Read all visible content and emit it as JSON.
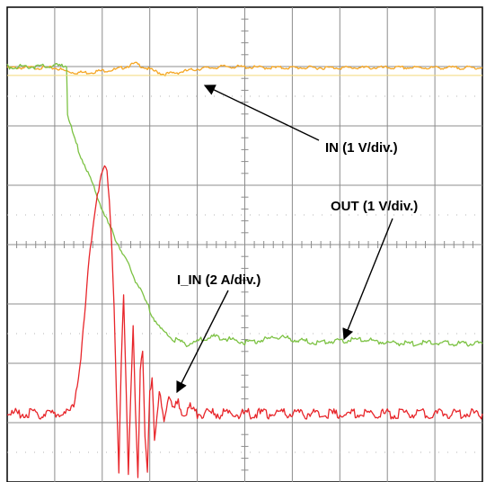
{
  "chart_data": {
    "type": "line",
    "title": "",
    "xlabel": "",
    "ylabel": "",
    "grid": true,
    "grid_divisions": {
      "x": 10,
      "y": 8
    },
    "xlim": [
      0,
      10
    ],
    "ylim": [
      -4,
      4
    ],
    "colors": {
      "in": "#f5a623",
      "out": "#7cc243",
      "iin": "#e8262b",
      "grid": "#8c8c8c",
      "arrow": "#000000"
    },
    "series": [
      {
        "key": "in",
        "points": [
          [
            0,
            2.98
          ],
          [
            0.8,
            2.98
          ],
          [
            1.05,
            2.97
          ],
          [
            1.2,
            2.93
          ],
          [
            1.4,
            2.9
          ],
          [
            1.7,
            2.9
          ],
          [
            2.0,
            2.93
          ],
          [
            2.3,
            2.95
          ],
          [
            2.7,
            3.05
          ],
          [
            3.0,
            2.95
          ],
          [
            3.3,
            2.87
          ],
          [
            3.6,
            2.9
          ],
          [
            4.0,
            2.96
          ],
          [
            4.6,
            3.0
          ],
          [
            5.5,
            2.98
          ],
          [
            6.5,
            2.98
          ],
          [
            7.5,
            2.98
          ],
          [
            8.5,
            2.98
          ],
          [
            9.5,
            2.98
          ],
          [
            10,
            2.98
          ]
        ]
      },
      {
        "key": "out",
        "points": [
          [
            0,
            3.0
          ],
          [
            0.8,
            3.0
          ],
          [
            1.25,
            3.02
          ],
          [
            1.27,
            2.2
          ],
          [
            1.4,
            1.8
          ],
          [
            1.6,
            1.4
          ],
          [
            1.8,
            1.0
          ],
          [
            1.95,
            0.7
          ],
          [
            2.1,
            0.4
          ],
          [
            2.25,
            0.15
          ],
          [
            2.4,
            -0.1
          ],
          [
            2.55,
            -0.35
          ],
          [
            2.7,
            -0.6
          ],
          [
            2.85,
            -0.85
          ],
          [
            3.0,
            -1.1
          ],
          [
            3.2,
            -1.4
          ],
          [
            3.5,
            -1.6
          ],
          [
            3.8,
            -1.68
          ],
          [
            4.1,
            -1.6
          ],
          [
            4.4,
            -1.55
          ],
          [
            4.7,
            -1.6
          ],
          [
            5.0,
            -1.65
          ],
          [
            5.3,
            -1.62
          ],
          [
            5.7,
            -1.55
          ],
          [
            6.0,
            -1.6
          ],
          [
            6.5,
            -1.65
          ],
          [
            7.0,
            -1.62
          ],
          [
            7.5,
            -1.6
          ],
          [
            8.0,
            -1.65
          ],
          [
            8.5,
            -1.67
          ],
          [
            9.0,
            -1.65
          ],
          [
            9.5,
            -1.67
          ],
          [
            10,
            -1.67
          ]
        ]
      },
      {
        "key": "iin",
        "points": [
          [
            0,
            -2.85
          ],
          [
            1.3,
            -2.85
          ],
          [
            1.4,
            -2.7
          ],
          [
            1.5,
            -2.2
          ],
          [
            1.6,
            -1.5
          ],
          [
            1.7,
            -0.5
          ],
          [
            1.8,
            0.3
          ],
          [
            1.9,
            0.9
          ],
          [
            2.0,
            1.2
          ],
          [
            2.05,
            1.3
          ],
          [
            2.1,
            1.2
          ],
          [
            2.15,
            0.8
          ],
          [
            2.2,
            0.0
          ],
          [
            2.25,
            -1.0
          ],
          [
            2.3,
            -2.5
          ],
          [
            2.35,
            -3.9
          ],
          [
            2.4,
            -2.0
          ],
          [
            2.45,
            -0.9
          ],
          [
            2.5,
            -2.3
          ],
          [
            2.55,
            -3.8
          ],
          [
            2.6,
            -2.5
          ],
          [
            2.65,
            -1.3
          ],
          [
            2.7,
            -2.8
          ],
          [
            2.75,
            -4.0
          ],
          [
            2.8,
            -2.2
          ],
          [
            2.85,
            -1.8
          ],
          [
            2.9,
            -3.2
          ],
          [
            2.95,
            -3.8
          ],
          [
            3.0,
            -2.4
          ],
          [
            3.05,
            -2.3
          ],
          [
            3.1,
            -3.3
          ],
          [
            3.15,
            -3.0
          ],
          [
            3.2,
            -2.5
          ],
          [
            3.3,
            -2.9
          ],
          [
            3.4,
            -2.55
          ],
          [
            3.5,
            -2.8
          ],
          [
            3.6,
            -2.65
          ],
          [
            3.7,
            -2.85
          ],
          [
            3.85,
            -2.75
          ],
          [
            4.0,
            -2.85
          ],
          [
            4.5,
            -2.85
          ],
          [
            5.5,
            -2.85
          ],
          [
            6.5,
            -2.85
          ],
          [
            7.5,
            -2.85
          ],
          [
            8.5,
            -2.85
          ],
          [
            9.5,
            -2.85
          ],
          [
            10,
            -2.85
          ]
        ]
      }
    ],
    "annotations": [
      {
        "text": "IN (1 V/div.)",
        "target_series": "in"
      },
      {
        "text": "OUT (1 V/div.)",
        "target_series": "out"
      },
      {
        "text": "I_IN (2 A/div.)",
        "target_series": "iin"
      }
    ]
  }
}
